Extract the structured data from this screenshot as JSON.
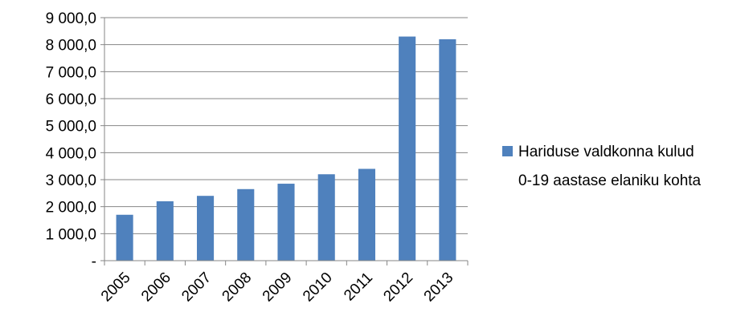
{
  "chart_data": {
    "type": "bar",
    "categories": [
      "2005",
      "2006",
      "2007",
      "2008",
      "2009",
      "2010",
      "2011",
      "2012",
      "2013"
    ],
    "series": [
      {
        "name": "Hariduse valdkonna kulud 0-19 aastase elaniku kohta",
        "legend_lines": [
          "Hariduse valdkonna kulud",
          "0-19 aastase elaniku kohta"
        ],
        "color": "#4F81BD",
        "values": [
          1700,
          2200,
          2400,
          2650,
          2850,
          3200,
          3400,
          8300,
          8200
        ]
      }
    ],
    "y_ticks": [
      {
        "value": 0,
        "label": "-"
      },
      {
        "value": 1000,
        "label": "1 000,0"
      },
      {
        "value": 2000,
        "label": "2 000,0"
      },
      {
        "value": 3000,
        "label": "3 000,0"
      },
      {
        "value": 4000,
        "label": "4 000,0"
      },
      {
        "value": 5000,
        "label": "5 000,0"
      },
      {
        "value": 6000,
        "label": "6 000,0"
      },
      {
        "value": 7000,
        "label": "7 000,0"
      },
      {
        "value": 8000,
        "label": "8 000,0"
      },
      {
        "value": 9000,
        "label": "9 000,0"
      }
    ],
    "ylim": [
      0,
      9000
    ],
    "grid": true,
    "legend_position": "right",
    "title": "",
    "xlabel": "",
    "ylabel": ""
  }
}
